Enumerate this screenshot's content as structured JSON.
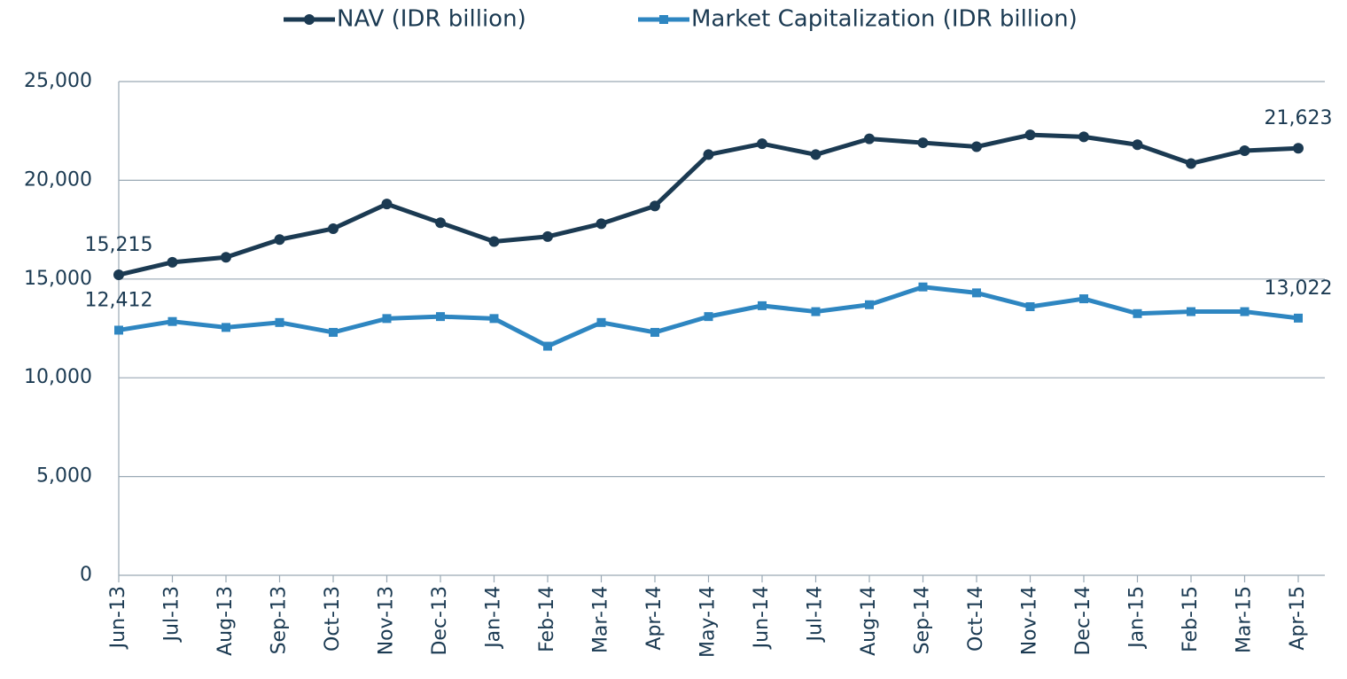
{
  "chart_data": {
    "type": "line",
    "categories": [
      "Jun-13",
      "Jul-13",
      "Aug-13",
      "Sep-13",
      "Oct-13",
      "Nov-13",
      "Dec-13",
      "Jan-14",
      "Feb-14",
      "Mar-14",
      "Apr-14",
      "May-14",
      "Jun-14",
      "Jul-14",
      "Aug-14",
      "Sep-14",
      "Oct-14",
      "Nov-14",
      "Dec-14",
      "Jan-15",
      "Feb-15",
      "Mar-15",
      "Apr-15"
    ],
    "series": [
      {
        "name": "NAV (IDR billion)",
        "color": "#1b3a52",
        "marker": "circle",
        "values": [
          15215,
          15850,
          16100,
          17000,
          17550,
          18800,
          17850,
          16900,
          17150,
          17800,
          18700,
          21300,
          21850,
          21300,
          22100,
          21900,
          21700,
          22300,
          22200,
          21800,
          20850,
          21500,
          21623
        ],
        "value_labels": [
          "15,215",
          null,
          null,
          null,
          null,
          null,
          null,
          null,
          null,
          null,
          null,
          null,
          null,
          null,
          null,
          null,
          null,
          null,
          null,
          null,
          null,
          null,
          "21,623"
        ]
      },
      {
        "name": "Market Capitalization (IDR billion)",
        "color": "#2e86c1",
        "marker": "square",
        "values": [
          12412,
          12850,
          12550,
          12800,
          12300,
          13000,
          13100,
          13000,
          11600,
          12800,
          12300,
          13100,
          13650,
          13350,
          13700,
          14600,
          14300,
          13600,
          14000,
          13250,
          13350,
          13350,
          13022
        ],
        "value_labels": [
          "12,412",
          null,
          null,
          null,
          null,
          null,
          null,
          null,
          null,
          null,
          null,
          null,
          null,
          null,
          null,
          null,
          null,
          null,
          null,
          null,
          null,
          null,
          "13,022"
        ]
      }
    ],
    "ylim": [
      0,
      25000
    ],
    "yticks": [
      0,
      {
        "value": 5000,
        "label": "5,000"
      },
      {
        "value": 10000,
        "label": "10,000"
      },
      {
        "value": 15000,
        "label": "15,000"
      },
      {
        "value": 20000,
        "label": "20,000"
      },
      {
        "value": 25000,
        "label": "25,000"
      }
    ],
    "grid": true,
    "legend": "top"
  }
}
